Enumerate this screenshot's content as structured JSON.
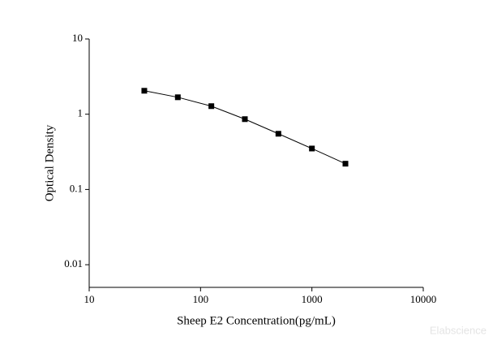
{
  "chart_data": {
    "type": "scatter-line",
    "x_label": "Sheep E2 Concentration(pg/mL)",
    "y_label": "Optical Density",
    "watermark": "Elabscience",
    "x": [
      31.25,
      62.5,
      125,
      250,
      500,
      1000,
      2000
    ],
    "values": [
      2.05,
      1.68,
      1.28,
      0.86,
      0.55,
      0.35,
      0.22
    ],
    "color": "#000000",
    "xscale": "log",
    "yscale": "log",
    "xlim": [
      10,
      10000
    ],
    "ylim": [
      0.005,
      10
    ],
    "xticks": [
      10,
      100,
      1000,
      10000
    ],
    "yticks": [
      0.01,
      0.1,
      1,
      10
    ],
    "grid": false
  }
}
